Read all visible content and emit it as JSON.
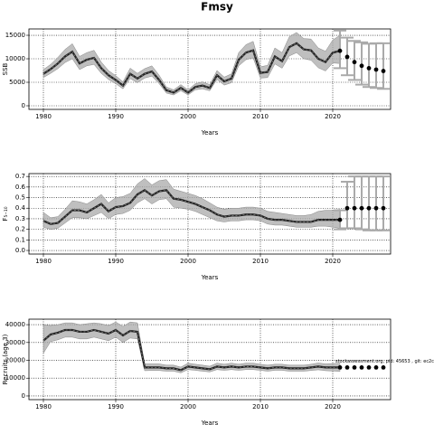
{
  "title": "Fmsy",
  "chart_data": [
    {
      "type": "line",
      "ylabel": "SSB",
      "xlabel": "Years",
      "color": "#222222",
      "band_color": "#aaaaaa",
      "grid": true,
      "xlim": [
        1978,
        2028
      ],
      "xticks": [
        1980,
        1990,
        2000,
        2010,
        2020
      ],
      "ylim": [
        -770,
        16350
      ],
      "yticks": [
        0,
        5000,
        10000,
        15000
      ],
      "x": [
        1980,
        1981,
        1982,
        1983,
        1984,
        1985,
        1986,
        1987,
        1988,
        1989,
        1990,
        1991,
        1992,
        1993,
        1994,
        1995,
        1996,
        1997,
        1998,
        1999,
        2000,
        2001,
        2002,
        2003,
        2004,
        2005,
        2006,
        2007,
        2008,
        2009,
        2010,
        2011,
        2012,
        2013,
        2014,
        2015,
        2016,
        2017,
        2018,
        2019,
        2020,
        2021
      ],
      "values": [
        6800,
        7800,
        9000,
        10500,
        11500,
        9000,
        9800,
        10200,
        8000,
        6500,
        5500,
        4300,
        6800,
        5800,
        6800,
        7300,
        5500,
        3300,
        2800,
        3800,
        2800,
        4000,
        4300,
        3800,
        6500,
        5200,
        5800,
        9800,
        11300,
        11800,
        7000,
        7200,
        10500,
        9500,
        12500,
        13300,
        12000,
        11800,
        10000,
        9300,
        11300,
        11700
      ],
      "lower": [
        6000,
        6900,
        7900,
        9200,
        10000,
        7700,
        8500,
        8800,
        6900,
        5600,
        4700,
        3600,
        5800,
        4900,
        5900,
        6300,
        4700,
        2700,
        2300,
        3200,
        2300,
        3400,
        3600,
        3200,
        5600,
        4400,
        4900,
        8500,
        9800,
        10200,
        5900,
        6000,
        8900,
        8000,
        10600,
        11300,
        10000,
        9700,
        8100,
        7400,
        9100,
        9000
      ],
      "upper": [
        7700,
        8800,
        10300,
        12000,
        13200,
        10500,
        11300,
        11800,
        9300,
        7500,
        6400,
        5100,
        8000,
        6900,
        7900,
        8500,
        6500,
        4000,
        3400,
        4500,
        3400,
        4700,
        5100,
        4500,
        7500,
        6100,
        6800,
        11300,
        13000,
        13700,
        8300,
        8600,
        12300,
        11300,
        14700,
        15600,
        14300,
        14200,
        12300,
        11600,
        14000,
        15000
      ],
      "projection": {
        "x": [
          2021,
          2022,
          2023,
          2024,
          2025,
          2026,
          2027
        ],
        "values": [
          11700,
          10400,
          9300,
          8500,
          8000,
          7700,
          7400
        ],
        "lower": [
          8000,
          6500,
          5500,
          4500,
          4000,
          3800,
          3600
        ],
        "upper": [
          16000,
          14500,
          13800,
          13500,
          13200,
          13300,
          13300
        ]
      }
    },
    {
      "type": "line",
      "ylabel": "F₅₋₁₀",
      "xlabel": "Years",
      "color": "#222222",
      "band_color": "#aaaaaa",
      "grid": true,
      "xlim": [
        1978,
        2028
      ],
      "xticks": [
        1980,
        1990,
        2000,
        2010,
        2020
      ],
      "ylim": [
        -0.034,
        0.727
      ],
      "yticks": [
        {
          "value": 0,
          "label": "0.0"
        },
        0.1,
        0.2,
        0.3,
        0.4,
        0.5,
        0.6,
        0.7
      ],
      "x": [
        1980,
        1981,
        1982,
        1983,
        1984,
        1985,
        1986,
        1987,
        1988,
        1989,
        1990,
        1991,
        1992,
        1993,
        1994,
        1995,
        1996,
        1997,
        1998,
        1999,
        2000,
        2001,
        2002,
        2003,
        2004,
        2005,
        2006,
        2007,
        2008,
        2009,
        2010,
        2011,
        2012,
        2013,
        2014,
        2015,
        2016,
        2017,
        2018,
        2019,
        2020,
        2021
      ],
      "values": [
        0.28,
        0.25,
        0.26,
        0.32,
        0.38,
        0.38,
        0.36,
        0.4,
        0.44,
        0.37,
        0.41,
        0.42,
        0.45,
        0.53,
        0.57,
        0.52,
        0.56,
        0.57,
        0.49,
        0.48,
        0.46,
        0.44,
        0.41,
        0.38,
        0.34,
        0.32,
        0.33,
        0.33,
        0.34,
        0.34,
        0.33,
        0.3,
        0.29,
        0.29,
        0.28,
        0.27,
        0.27,
        0.27,
        0.29,
        0.29,
        0.29,
        0.29
      ],
      "lower": [
        0.22,
        0.2,
        0.21,
        0.26,
        0.31,
        0.31,
        0.3,
        0.33,
        0.36,
        0.3,
        0.34,
        0.35,
        0.38,
        0.45,
        0.49,
        0.44,
        0.48,
        0.49,
        0.41,
        0.4,
        0.39,
        0.37,
        0.34,
        0.31,
        0.28,
        0.27,
        0.28,
        0.28,
        0.29,
        0.29,
        0.28,
        0.25,
        0.24,
        0.24,
        0.23,
        0.22,
        0.22,
        0.22,
        0.23,
        0.23,
        0.22,
        0.21
      ],
      "upper": [
        0.36,
        0.31,
        0.32,
        0.39,
        0.47,
        0.46,
        0.44,
        0.48,
        0.53,
        0.45,
        0.5,
        0.51,
        0.54,
        0.63,
        0.68,
        0.62,
        0.66,
        0.67,
        0.58,
        0.56,
        0.54,
        0.52,
        0.49,
        0.45,
        0.41,
        0.39,
        0.4,
        0.4,
        0.41,
        0.41,
        0.4,
        0.37,
        0.36,
        0.35,
        0.34,
        0.33,
        0.33,
        0.34,
        0.37,
        0.38,
        0.38,
        0.39
      ],
      "projection": {
        "x": [
          2021,
          2022,
          2023,
          2024,
          2025,
          2026,
          2027
        ],
        "values": [
          0.29,
          0.4,
          0.4,
          0.4,
          0.4,
          0.4,
          0.4
        ],
        "lower": [
          0.2,
          0.21,
          0.21,
          0.2,
          0.19,
          0.19,
          0.19
        ],
        "upper": [
          0.38,
          0.65,
          0.7,
          0.7,
          0.7,
          0.7,
          0.7
        ]
      }
    },
    {
      "type": "line",
      "ylabel": "Recruits (age 3)",
      "xlabel": "Years",
      "color": "#222222",
      "band_color": "#aaaaaa",
      "grid": true,
      "xlim": [
        1978,
        2028
      ],
      "xticks": [
        1980,
        1990,
        2000,
        2010,
        2020
      ],
      "ylim": [
        -2050,
        43080
      ],
      "yticks": [
        0,
        10000,
        20000,
        30000,
        40000
      ],
      "annotation": "stockassessment.org, pid: 45653 , git: ec2c",
      "x": [
        1980,
        1981,
        1982,
        1983,
        1984,
        1985,
        1986,
        1987,
        1988,
        1989,
        1990,
        1991,
        1992,
        1993,
        1994,
        1995,
        1996,
        1997,
        1998,
        1999,
        2000,
        2001,
        2002,
        2003,
        2004,
        2005,
        2006,
        2007,
        2008,
        2009,
        2010,
        2011,
        2012,
        2013,
        2014,
        2015,
        2016,
        2017,
        2018,
        2019,
        2020,
        2021
      ],
      "values": [
        31000,
        34500,
        35500,
        37000,
        37000,
        36000,
        36000,
        37000,
        36000,
        35000,
        37000,
        34000,
        36500,
        36000,
        16000,
        16000,
        16000,
        15500,
        15500,
        14500,
        16500,
        16000,
        15500,
        15000,
        16500,
        16000,
        16500,
        16000,
        16500,
        16500,
        16000,
        15500,
        16000,
        16000,
        15500,
        15500,
        15500,
        16000,
        16500,
        16000,
        16000,
        16000
      ],
      "lower": [
        24000,
        30500,
        31500,
        33000,
        33000,
        32000,
        32000,
        33000,
        32000,
        31000,
        33000,
        30000,
        32500,
        32000,
        14200,
        14300,
        14300,
        13900,
        13900,
        13000,
        14800,
        14400,
        13900,
        13500,
        14800,
        14400,
        14800,
        14400,
        14800,
        14800,
        14400,
        13900,
        14400,
        14400,
        13900,
        13900,
        13900,
        14300,
        14700,
        14200,
        14000,
        13800
      ],
      "upper": [
        40000,
        39500,
        40000,
        41000,
        41000,
        40000,
        40500,
        41000,
        40500,
        39500,
        41500,
        39000,
        41500,
        41000,
        18000,
        18000,
        18000,
        17300,
        17300,
        16200,
        18400,
        17800,
        17300,
        16700,
        18400,
        17800,
        18400,
        17800,
        18400,
        18400,
        17800,
        17300,
        17800,
        17800,
        17300,
        17300,
        17300,
        17800,
        18500,
        18000,
        18200,
        18400
      ],
      "projection": {
        "x": [
          2021,
          2022,
          2023,
          2024,
          2025,
          2026,
          2027
        ],
        "values": [
          16000,
          16000,
          16000,
          16000,
          16000,
          16000,
          16000
        ]
      }
    }
  ]
}
